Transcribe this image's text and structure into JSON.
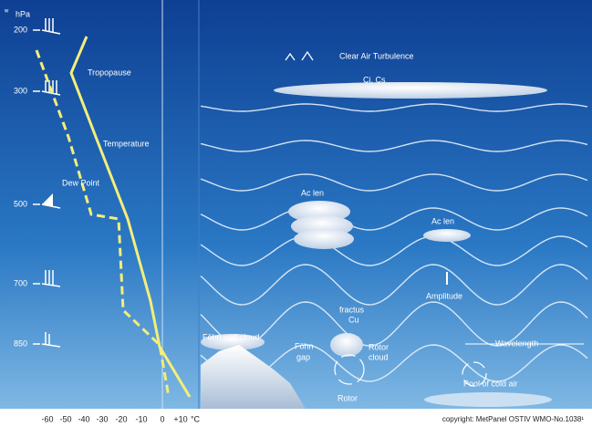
{
  "axis": {
    "unit": "hPa",
    "pressure_labels": [
      "200",
      "300",
      "500",
      "700",
      "850"
    ],
    "temperature_labels": [
      "-60",
      "-50",
      "-40",
      "-30",
      "-20",
      "-10",
      "0",
      "+10",
      "°C"
    ]
  },
  "curves": {
    "tropopause": "Tropopause",
    "temperature": "Temperature",
    "dew_point": "Dew Point"
  },
  "labels": {
    "clear_air_turbulence": "Clear Air Turbulence",
    "ci_cs": "Ci, Cs",
    "ac_len_left": "Ac len",
    "ac_len_right": "Ac len",
    "amplitude": "Amplitude",
    "fractus": "fractus",
    "cu": "Cu",
    "fohn_wall_cloud": "Föhn wall cloud",
    "fohn": "Föhn",
    "gap": "gap",
    "rotor_cloud_1": "Rotor",
    "rotor_cloud_2": "cloud",
    "rotor": "Rotor",
    "wavelength": "Wavelength",
    "pool_of_cold_air": "Pool of cold air"
  },
  "copyright": "copyright: MetPanel OSTIV WMO-No.1038¹"
}
